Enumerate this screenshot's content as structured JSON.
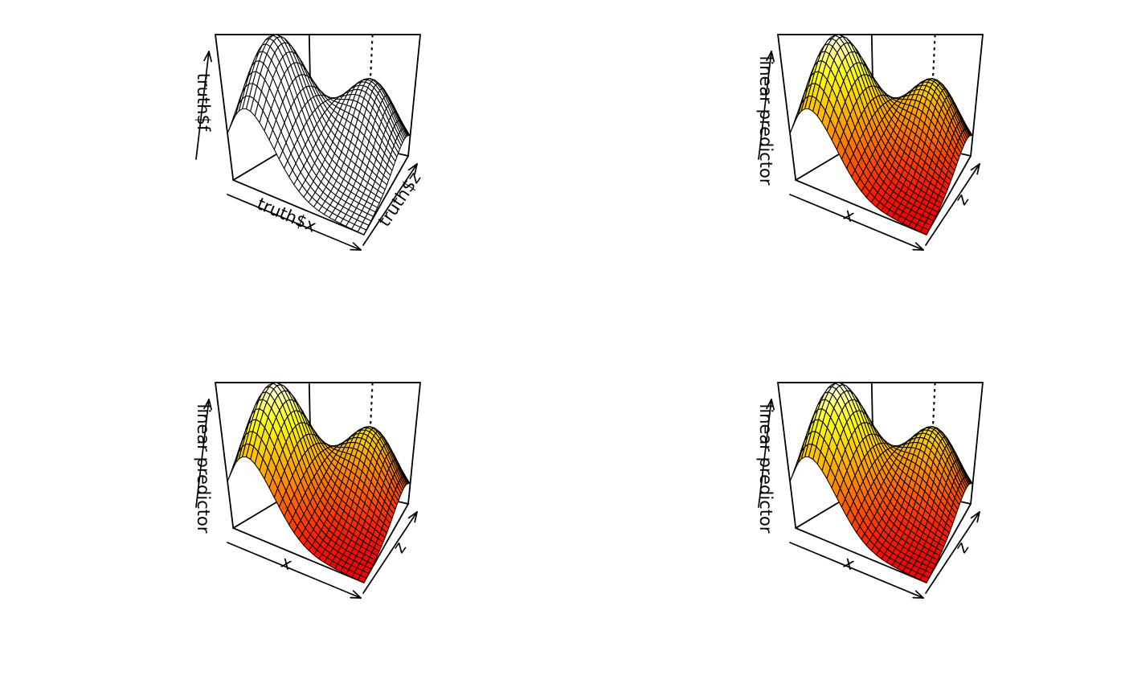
{
  "app": {
    "kind": "R graphics device output",
    "background_color": "#ffffff",
    "grid": {
      "rows": 2,
      "cols": 2
    }
  },
  "chart_data": [
    {
      "id": "truth-surface",
      "type": "surface3d",
      "position": "top-left",
      "labels": {
        "xlab": "truth$x",
        "ylab": "truth$z",
        "zlab": "truth$f"
      },
      "surface": {
        "formula": "f(x,z) = 1.2*exp(-(x-0.2)^2/0.3^2 - (z-0.3)^2/0.4^2) + 0.8*exp(-(x-0.7)^2/0.3^2 - (z-0.8)^2/0.4^2)",
        "bumps": [
          {
            "amplitude": 1.2,
            "x0": 0.2,
            "z0": 0.3,
            "sx": 0.3,
            "sz": 0.4
          },
          {
            "amplitude": 0.8,
            "x0": 0.7,
            "z0": 0.8,
            "sx": 0.3,
            "sz": 0.4
          }
        ],
        "grid_n": 30,
        "x_range": [
          0,
          1
        ],
        "z_range": [
          0,
          1
        ],
        "f_range_approx": [
          0.006,
          1.21
        ]
      },
      "style": {
        "facet_fill": "#ffffff",
        "mesh_color": "#000000",
        "colormap": "none"
      },
      "marker": {
        "type": "dashed-vertical-line",
        "x": 0.7,
        "z": 0.8
      },
      "view": {
        "theta_deg": 30,
        "phi_deg": 16.1,
        "perspective_distance": 1.8
      }
    },
    {
      "id": "fit-surface-1",
      "type": "surface3d",
      "position": "top-right",
      "labels": {
        "xlab": "x",
        "ylab": "z",
        "zlab": "linear predictor"
      },
      "surface": {
        "formula": "f(x,z) = 1.2*exp(-(x-0.2)^2/0.3^2 - (z-0.3)^2/0.4^2) + 0.8*exp(-(x-0.7)^2/0.3^2 - (z-0.8)^2/0.4^2)",
        "bumps": [
          {
            "amplitude": 1.2,
            "x0": 0.2,
            "z0": 0.3,
            "sx": 0.3,
            "sz": 0.4
          },
          {
            "amplitude": 0.8,
            "x0": 0.7,
            "z0": 0.8,
            "sx": 0.3,
            "sz": 0.4
          }
        ],
        "grid_n": 30,
        "x_range": [
          0,
          1
        ],
        "z_range": [
          0,
          1
        ],
        "f_range_approx": [
          0.006,
          1.21
        ]
      },
      "style": {
        "facet_fill": "heat",
        "mesh_color": "#000000",
        "colormap": "heat.colors(50)",
        "low_color": "#FF0000",
        "high_color": "#FFFFDF"
      },
      "marker": {
        "type": "dashed-vertical-line",
        "x": 0.7,
        "z": 0.8
      },
      "view": {
        "theta_deg": 30,
        "phi_deg": 16.1,
        "perspective_distance": 1.8
      }
    },
    {
      "id": "fit-surface-2",
      "type": "surface3d",
      "position": "bottom-left",
      "labels": {
        "xlab": "x",
        "ylab": "z",
        "zlab": "linear predictor"
      },
      "surface": {
        "formula": "f(x,z) = 1.2*exp(-(x-0.2)^2/0.3^2 - (z-0.3)^2/0.4^2) + 0.8*exp(-(x-0.7)^2/0.3^2 - (z-0.8)^2/0.4^2)",
        "bumps": [
          {
            "amplitude": 1.2,
            "x0": 0.2,
            "z0": 0.3,
            "sx": 0.3,
            "sz": 0.4
          },
          {
            "amplitude": 0.8,
            "x0": 0.7,
            "z0": 0.8,
            "sx": 0.3,
            "sz": 0.4
          }
        ],
        "grid_n": 30,
        "x_range": [
          0,
          1
        ],
        "z_range": [
          0,
          1
        ],
        "f_range_approx": [
          0.006,
          1.21
        ]
      },
      "style": {
        "facet_fill": "heat",
        "mesh_color": "#000000",
        "colormap": "heat.colors(50)",
        "low_color": "#FF0000",
        "high_color": "#FFFFDF"
      },
      "marker": {
        "type": "dashed-vertical-line",
        "x": 0.7,
        "z": 0.8
      },
      "view": {
        "theta_deg": 30,
        "phi_deg": 16.1,
        "perspective_distance": 1.8
      }
    },
    {
      "id": "fit-surface-3",
      "type": "surface3d",
      "position": "bottom-right",
      "labels": {
        "xlab": "x",
        "ylab": "z",
        "zlab": "linear predictor"
      },
      "surface": {
        "formula": "f(x,z) = 1.2*exp(-(x-0.2)^2/0.3^2 - (z-0.3)^2/0.4^2) + 0.8*exp(-(x-0.7)^2/0.3^2 - (z-0.8)^2/0.4^2)",
        "bumps": [
          {
            "amplitude": 1.2,
            "x0": 0.2,
            "z0": 0.3,
            "sx": 0.3,
            "sz": 0.4
          },
          {
            "amplitude": 0.8,
            "x0": 0.7,
            "z0": 0.8,
            "sx": 0.3,
            "sz": 0.4
          }
        ],
        "grid_n": 30,
        "x_range": [
          0,
          1
        ],
        "z_range": [
          0,
          1
        ],
        "f_range_approx": [
          0.006,
          1.21
        ]
      },
      "style": {
        "facet_fill": "heat",
        "mesh_color": "#000000",
        "colormap": "heat.colors(50)",
        "low_color": "#FF0000",
        "high_color": "#FFFFDF"
      },
      "marker": {
        "type": "dashed-vertical-line",
        "x": 0.7,
        "z": 0.8
      },
      "view": {
        "theta_deg": 30,
        "phi_deg": 16.1,
        "perspective_distance": 1.8
      }
    }
  ]
}
